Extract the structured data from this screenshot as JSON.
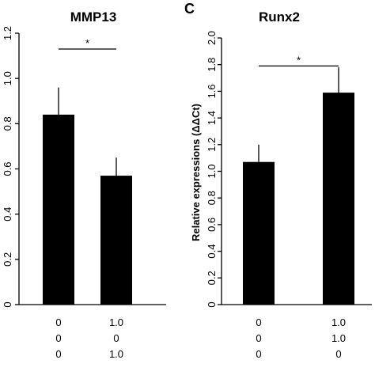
{
  "chart_data": [
    {
      "type": "bar",
      "title": "MMP13",
      "panel_letter": "",
      "ylabel": "",
      "ylim": [
        0,
        1.2
      ],
      "yticks": [
        "0",
        "0.2",
        "0.4",
        "0.6",
        "0.8",
        "1.0",
        "1.2"
      ],
      "values": [
        0.84,
        0.57
      ],
      "errors": [
        0.12,
        0.08
      ],
      "bar_color": "#000000",
      "significance": {
        "between": [
          0,
          1
        ],
        "label": "*",
        "y": 1.13
      },
      "conditions": [
        [
          "0",
          "1.0"
        ],
        [
          "0",
          "0"
        ],
        [
          "0",
          "1.0"
        ]
      ]
    },
    {
      "type": "bar",
      "title": "Runx2",
      "panel_letter": "C",
      "ylabel": "Relative expressions (ΔΔCt)",
      "ylim": [
        0,
        2.0
      ],
      "yticks": [
        "0",
        "0.2",
        "0.4",
        "0.6",
        "0.8",
        "1.0",
        "1.2",
        "1.4",
        "1.6",
        "1.8",
        "2.0"
      ],
      "values": [
        1.07,
        1.59
      ],
      "errors": [
        0.13,
        0.19
      ],
      "bar_color": "#000000",
      "significance": {
        "between": [
          0,
          1
        ],
        "label": "*",
        "y": 1.79
      },
      "conditions": [
        [
          "0",
          "1.0"
        ],
        [
          "0",
          "1.0"
        ],
        [
          "0",
          "0"
        ]
      ]
    }
  ]
}
